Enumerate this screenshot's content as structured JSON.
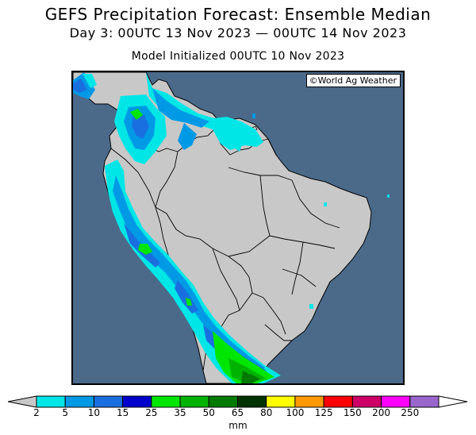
{
  "title": "GEFS Precipitation Forecast: Ensemble Median",
  "subtitle": "Day 3: 00UTC 13 Nov 2023 — 00UTC 14 Nov 2023",
  "init_line": "Model Initialized 00UTC 10 Nov 2023",
  "credit": "©World Ag Weather",
  "colors": {
    "ocean": "#4b6a8a",
    "land": "#c8c8c8",
    "borders": "#000000"
  },
  "legend": {
    "unit": "mm",
    "ticks": [
      "2",
      "5",
      "10",
      "15",
      "25",
      "35",
      "50",
      "65",
      "80",
      "100",
      "125",
      "150",
      "200",
      "250"
    ],
    "colors": [
      "#00e6e6",
      "#0099e6",
      "#1a6fe0",
      "#0000cc",
      "#00e600",
      "#00b300",
      "#007a00",
      "#003300",
      "#ffff00",
      "#ff9900",
      "#ff0000",
      "#cc0066",
      "#ff00ff",
      "#9966cc"
    ],
    "left_arrow_color": "#c8c8c8",
    "right_arrow_color": "#ffffff"
  }
}
